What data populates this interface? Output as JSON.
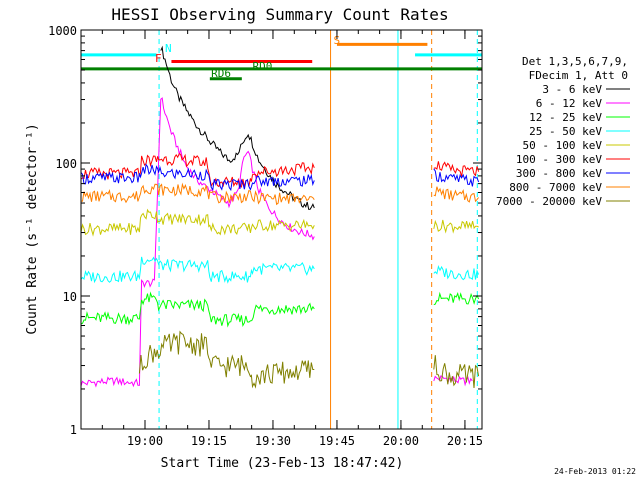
{
  "chart_data": {
    "type": "line",
    "title": "HESSI Observing Summary Count Rates",
    "xlabel": "Start Time (23-Feb-13 18:47:42)",
    "ylabel": "Count Rate (s⁻¹ detector⁻¹)",
    "yscale": "log",
    "ylim": [
      1,
      1000
    ],
    "xlim_minutes": [
      -2.7,
      91.3
    ],
    "x_ticks": [
      "19:00",
      "19:15",
      "19:30",
      "19:45",
      "20:00",
      "20:15"
    ],
    "x_tick_minutes": [
      12.3,
      27.3,
      42.3,
      57.3,
      72.3,
      87.3
    ],
    "y_ticks": [
      "1",
      "10",
      "100",
      "1000"
    ],
    "y_tick_values": [
      1,
      10,
      100,
      1000
    ],
    "legend_header": [
      "Det 1,3,5,6,7,9,",
      "FDecim 1, Att 0"
    ],
    "legend_position": "right",
    "timestamp": "24-Feb-2013 01:22",
    "markers": [
      {
        "label": "N",
        "color": "#00ffff"
      },
      {
        "label": "F",
        "color": "#ff0000"
      },
      {
        "label": "RD0",
        "color": "#008000"
      },
      {
        "label": "RD6",
        "color": "#008000"
      },
      {
        "label": "S",
        "color": "#ff8000"
      }
    ],
    "bars": [
      {
        "name": "N",
        "color": "#00ffff",
        "y": 650,
        "segments": [
          [
            -2.7,
            15.0
          ],
          [
            75.6,
            91.3
          ]
        ]
      },
      {
        "name": "S",
        "color": "#ff8000",
        "y": 780,
        "segments": [
          [
            57.3,
            78.5
          ]
        ]
      },
      {
        "name": "F",
        "color": "#ff0000",
        "y": 580,
        "segments": [
          [
            18.5,
            51.5
          ]
        ]
      },
      {
        "name": "RD0",
        "color": "#008000",
        "y": 510,
        "segments": [
          [
            -2.7,
            91.3
          ]
        ]
      },
      {
        "name": "RD6",
        "color": "#008000",
        "y": 430,
        "segments": [
          [
            27.5,
            35.0
          ]
        ]
      }
    ],
    "vlines": [
      {
        "minutes": 15.6,
        "color": "#00ffff",
        "style": "dashed"
      },
      {
        "minutes": 55.8,
        "color": "#ff8000",
        "style": "solid"
      },
      {
        "minutes": 71.6,
        "color": "#00ffff",
        "style": "solid"
      },
      {
        "minutes": 79.5,
        "color": "#ff8000",
        "style": "dashed"
      },
      {
        "minutes": 90.2,
        "color": "#00ffff",
        "style": "dashed"
      }
    ],
    "series": [
      {
        "name": "3 - 6 keV",
        "color": "#000000",
        "segments": [
          [
            [
              16.0,
              750
            ],
            [
              17.0,
              600
            ],
            [
              18.5,
              420
            ],
            [
              20.0,
              320
            ],
            [
              22.0,
              250
            ],
            [
              24.0,
              200
            ],
            [
              26.0,
              165
            ],
            [
              28.0,
              140
            ],
            [
              30.0,
              120
            ],
            [
              32.0,
              105
            ],
            [
              34.0,
              115
            ],
            [
              35.5,
              150
            ],
            [
              36.5,
              170
            ],
            [
              37.5,
              140
            ],
            [
              39.0,
              105
            ],
            [
              41.0,
              85
            ],
            [
              43.0,
              70
            ],
            [
              45.0,
              62
            ],
            [
              47.0,
              55
            ],
            [
              49.0,
              50
            ],
            [
              51.0,
              47
            ],
            [
              52.0,
              46
            ]
          ]
        ]
      },
      {
        "name": "6 - 12 keV",
        "color": "#ff00ff",
        "segments": [
          [
            [
              -2.7,
              2.2
            ],
            [
              5.0,
              2.3
            ],
            [
              11.0,
              2.2
            ],
            [
              11.5,
              12.5
            ],
            [
              14.5,
              12.5
            ],
            [
              16.0,
              320
            ],
            [
              17.0,
              240
            ],
            [
              18.5,
              170
            ],
            [
              20.0,
              130
            ],
            [
              22.0,
              95
            ],
            [
              24.0,
              78
            ],
            [
              26.0,
              68
            ],
            [
              28.0,
              62
            ],
            [
              30.0,
              55
            ],
            [
              32.0,
              50
            ],
            [
              34.0,
              60
            ],
            [
              35.5,
              110
            ],
            [
              36.5,
              120
            ],
            [
              37.5,
              90
            ],
            [
              39.0,
              62
            ],
            [
              41.0,
              48
            ],
            [
              43.0,
              40
            ],
            [
              45.0,
              35
            ],
            [
              47.0,
              32
            ],
            [
              49.0,
              30
            ],
            [
              51.0,
              29
            ],
            [
              52.0,
              28
            ]
          ],
          [
            [
              80.0,
              2.4
            ],
            [
              83.0,
              2.4
            ],
            [
              86.0,
              2.3
            ],
            [
              89.0,
              2.3
            ]
          ]
        ]
      },
      {
        "name": "12 - 25 keV",
        "color": "#00ff00",
        "segments": [
          [
            [
              -2.7,
              6.8
            ],
            [
              11.0,
              6.8
            ],
            [
              11.5,
              9.5
            ],
            [
              15.0,
              9.5
            ],
            [
              15.5,
              8.5
            ],
            [
              27.0,
              8.5
            ],
            [
              27.5,
              6.6
            ],
            [
              37.0,
              6.6
            ],
            [
              38.0,
              8.0
            ],
            [
              52.0,
              8.0
            ]
          ],
          [
            [
              80.0,
              9.5
            ],
            [
              90.5,
              9.5
            ]
          ]
        ]
      },
      {
        "name": "25 - 50 keV",
        "color": "#00ffff",
        "segments": [
          [
            [
              -2.7,
              14.0
            ],
            [
              11.0,
              14.0
            ],
            [
              11.5,
              19.0
            ],
            [
              15.0,
              19.0
            ],
            [
              15.5,
              17.0
            ],
            [
              27.0,
              17.0
            ],
            [
              27.5,
              14.0
            ],
            [
              37.0,
              14.0
            ],
            [
              37.5,
              16.0
            ],
            [
              52.0,
              16.0
            ]
          ],
          [
            [
              80.0,
              15.5
            ],
            [
              84.0,
              14.8
            ],
            [
              90.5,
              14.5
            ]
          ]
        ]
      },
      {
        "name": "50 - 100 keV",
        "color": "#c8c800",
        "segments": [
          [
            [
              -2.7,
              32.0
            ],
            [
              11.0,
              32.0
            ],
            [
              11.5,
              41.0
            ],
            [
              15.0,
              41.0
            ],
            [
              15.5,
              38.0
            ],
            [
              27.0,
              38.0
            ],
            [
              27.5,
              32.0
            ],
            [
              37.0,
              32.0
            ],
            [
              37.5,
              34.0
            ],
            [
              52.0,
              34.0
            ]
          ],
          [
            [
              80.0,
              34.0
            ],
            [
              90.5,
              33.0
            ]
          ]
        ]
      },
      {
        "name": "100 - 300 keV",
        "color": "#ff0000",
        "segments": [
          [
            [
              -2.7,
              83.0
            ],
            [
              11.0,
              83.0
            ],
            [
              11.5,
              105.0
            ],
            [
              15.0,
              105.0
            ],
            [
              15.5,
              108.0
            ],
            [
              21.0,
              106.0
            ],
            [
              27.0,
              100.0
            ],
            [
              27.5,
              72.0
            ],
            [
              37.0,
              72.0
            ],
            [
              37.5,
              85.0
            ],
            [
              52.0,
              92.0
            ]
          ],
          [
            [
              80.0,
              100.0
            ],
            [
              84.0,
              88.0
            ],
            [
              90.5,
              86.0
            ]
          ]
        ]
      },
      {
        "name": "300 - 800 keV",
        "color": "#0000ff",
        "segments": [
          [
            [
              -2.7,
              77.0
            ],
            [
              11.0,
              77.0
            ],
            [
              11.5,
              88.0
            ],
            [
              15.0,
              88.0
            ],
            [
              15.5,
              84.0
            ],
            [
              27.0,
              82.0
            ],
            [
              27.5,
              68.0
            ],
            [
              37.0,
              70.0
            ],
            [
              37.5,
              73.0
            ],
            [
              52.0,
              74.0
            ]
          ],
          [
            [
              80.0,
              82.0
            ],
            [
              84.0,
              76.0
            ],
            [
              90.5,
              72.0
            ]
          ]
        ]
      },
      {
        "name": "800 - 7000 keV",
        "color": "#ff8000",
        "segments": [
          [
            [
              -2.7,
              56.0
            ],
            [
              11.0,
              56.0
            ],
            [
              11.5,
              65.0
            ],
            [
              15.0,
              65.0
            ],
            [
              15.5,
              63.0
            ],
            [
              27.0,
              62.0
            ],
            [
              27.5,
              55.0
            ],
            [
              37.0,
              56.0
            ],
            [
              37.5,
              55.0
            ],
            [
              52.0,
              53.0
            ]
          ],
          [
            [
              80.0,
              62.0
            ],
            [
              84.0,
              57.0
            ],
            [
              90.5,
              55.0
            ]
          ]
        ]
      },
      {
        "name": "7000 - 20000 keV",
        "color": "#808000",
        "segments": [
          [
            [
              11.0,
              2.8
            ],
            [
              12.5,
              3.5
            ],
            [
              15.5,
              4.0
            ],
            [
              20.5,
              4.5
            ],
            [
              27.0,
              4.2
            ],
            [
              27.5,
              3.0
            ],
            [
              37.0,
              3.0
            ],
            [
              37.5,
              2.5
            ],
            [
              52.0,
              2.8
            ]
          ],
          [
            [
              80.0,
              3.0
            ],
            [
              84.0,
              2.5
            ],
            [
              90.5,
              2.5
            ]
          ]
        ]
      }
    ]
  }
}
